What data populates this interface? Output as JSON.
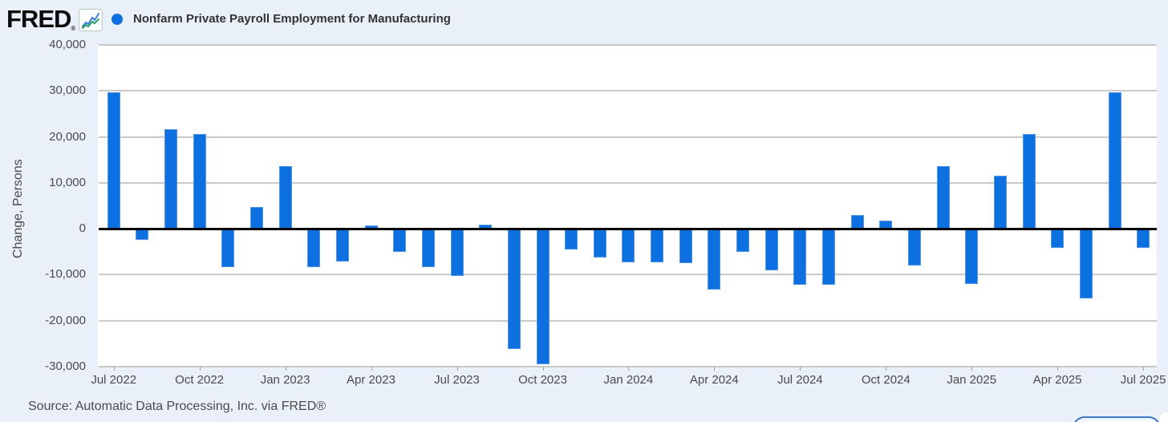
{
  "header": {
    "logo_text": "FRED",
    "logo_registered": "®"
  },
  "footer": {
    "source": "Source: Automatic Data Processing, Inc. via FRED®"
  },
  "colors": {
    "bar": "#0d70e1",
    "legend_marker": "#0d70e1",
    "grid": "#c9c9c9",
    "zero_line": "#000000",
    "background": "#eaf0fa",
    "plot_background": "#ffffff",
    "spark_blue": "#3a7bd5",
    "spark_green": "#2e9e68"
  },
  "chart_data": {
    "type": "bar",
    "title": "Nonfarm Private Payroll Employment for Manufacturing",
    "xlabel": "",
    "ylabel": "Change, Persons",
    "ylim": [
      -30000,
      40000
    ],
    "grid": true,
    "legend_position": "top-left",
    "y_ticks": [
      40000,
      30000,
      20000,
      10000,
      0,
      -10000,
      -20000,
      -30000
    ],
    "x_ticks": [
      "Jul 2022",
      "Oct 2022",
      "Jan 2023",
      "Apr 2023",
      "Jul 2023",
      "Oct 2023",
      "Jan 2024",
      "Apr 2024",
      "Jul 2024",
      "Oct 2024",
      "Jan 2025",
      "Apr 2025",
      "Jul 2025"
    ],
    "categories": [
      "Jul 2022",
      "Aug 2022",
      "Sep 2022",
      "Oct 2022",
      "Nov 2022",
      "Dec 2022",
      "Jan 2023",
      "Feb 2023",
      "Mar 2023",
      "Apr 2023",
      "May 2023",
      "Jun 2023",
      "Jul 2023",
      "Aug 2023",
      "Sep 2023",
      "Oct 2023",
      "Nov 2023",
      "Dec 2023",
      "Jan 2024",
      "Feb 2024",
      "Mar 2024",
      "Apr 2024",
      "May 2024",
      "Jun 2024",
      "Jul 2024",
      "Aug 2024",
      "Sep 2024",
      "Oct 2024",
      "Nov 2024",
      "Dec 2024",
      "Jan 2025",
      "Feb 2025",
      "Mar 2025",
      "Apr 2025",
      "May 2025",
      "Jun 2025",
      "Jul 2025"
    ],
    "values": [
      29700,
      -2400,
      21600,
      20600,
      -8300,
      4700,
      13600,
      -8300,
      -7200,
      800,
      -5100,
      -8300,
      -10300,
      900,
      -26200,
      -29500,
      -4500,
      -6300,
      -7300,
      -7400,
      -7500,
      -13300,
      -5100,
      -9100,
      -12200,
      -12200,
      3000,
      1700,
      -8100,
      13600,
      -12100,
      11600,
      20600,
      -4200,
      -15100,
      29700,
      -4200
    ]
  }
}
